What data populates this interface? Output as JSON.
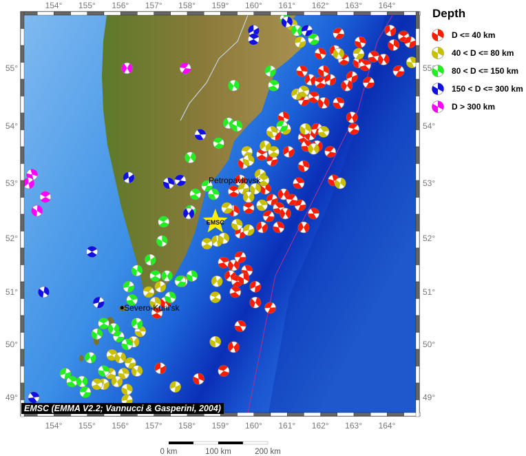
{
  "legend": {
    "title": "Depth",
    "items": [
      {
        "label": "D <= 40 km",
        "color": "#ff1a00"
      },
      {
        "label": "40 < D <= 80 km",
        "color": "#c8c000"
      },
      {
        "label": "80 < D <= 150 km",
        "color": "#22ee22"
      },
      {
        "label": "150 < D <= 300 km",
        "color": "#1010e0"
      },
      {
        "label": "D > 300 km",
        "color": "#ff00ff"
      }
    ]
  },
  "credit": "EMSC (EMMA V2.2; Vannucci & Gasperini, 2004)",
  "axes": {
    "lon_ticks": [
      "154°",
      "155°",
      "156°",
      "157°",
      "158°",
      "159°",
      "160°",
      "161°",
      "162°",
      "163°",
      "164°"
    ],
    "lat_ticks": [
      "55°",
      "54°",
      "53°",
      "52°",
      "51°",
      "50°",
      "49°"
    ]
  },
  "places": [
    {
      "name": "Petropavlovsk",
      "lon": 158.65,
      "lat": 53.05
    },
    {
      "name": "Severo-Kuril'sk",
      "lon": 156.05,
      "lat": 50.7
    }
  ],
  "marker": {
    "label": "EMSC",
    "lon": 158.85,
    "lat": 52.3,
    "color": "#ffee00"
  },
  "scale_bar": {
    "labels": [
      "0 km",
      "100 km",
      "200 km"
    ]
  },
  "events": {
    "0": [
      [
        162.55,
        55.6
      ],
      [
        163.2,
        55.45
      ],
      [
        164.1,
        55.65
      ],
      [
        164.5,
        55.55
      ],
      [
        164.2,
        55.4
      ],
      [
        164.7,
        55.45
      ],
      [
        163.6,
        55.2
      ],
      [
        163.9,
        55.15
      ],
      [
        164.35,
        54.95
      ],
      [
        162.0,
        55.25
      ],
      [
        162.45,
        55.3
      ],
      [
        162.7,
        55.15
      ],
      [
        163.15,
        55.1
      ],
      [
        162.95,
        54.85
      ],
      [
        163.35,
        55.05
      ],
      [
        162.8,
        54.7
      ],
      [
        163.45,
        54.75
      ],
      [
        161.45,
        54.95
      ],
      [
        161.7,
        54.8
      ],
      [
        162.0,
        54.75
      ],
      [
        162.1,
        54.95
      ],
      [
        162.3,
        54.8
      ],
      [
        161.8,
        54.5
      ],
      [
        162.1,
        54.4
      ],
      [
        161.5,
        54.45
      ],
      [
        162.55,
        54.4
      ],
      [
        162.95,
        54.15
      ],
      [
        163.0,
        53.95
      ],
      [
        160.9,
        54.15
      ],
      [
        160.65,
        53.85
      ],
      [
        161.5,
        53.8
      ],
      [
        161.7,
        53.85
      ],
      [
        161.9,
        53.95
      ],
      [
        161.6,
        53.65
      ],
      [
        161.9,
        53.65
      ],
      [
        162.3,
        53.55
      ],
      [
        161.5,
        53.3
      ],
      [
        161.05,
        53.55
      ],
      [
        160.25,
        53.5
      ],
      [
        159.7,
        53.35
      ],
      [
        160.55,
        53.4
      ],
      [
        161.35,
        53.0
      ],
      [
        160.9,
        52.8
      ],
      [
        161.15,
        52.7
      ],
      [
        162.4,
        53.05
      ],
      [
        159.6,
        53.05
      ],
      [
        159.4,
        52.85
      ],
      [
        160.35,
        52.9
      ],
      [
        160.55,
        52.7
      ],
      [
        160.75,
        52.55
      ],
      [
        160.95,
        52.45
      ],
      [
        160.45,
        52.4
      ],
      [
        160.75,
        52.2
      ],
      [
        160.25,
        52.2
      ],
      [
        159.85,
        52.55
      ],
      [
        159.4,
        52.5
      ],
      [
        159.6,
        52.1
      ],
      [
        159.1,
        51.55
      ],
      [
        159.4,
        51.5
      ],
      [
        159.6,
        51.65
      ],
      [
        159.8,
        51.4
      ],
      [
        159.3,
        51.3
      ],
      [
        159.5,
        51.2
      ],
      [
        159.7,
        51.25
      ],
      [
        160.05,
        51.1
      ],
      [
        159.45,
        51.0
      ],
      [
        160.05,
        50.8
      ],
      [
        160.5,
        50.7
      ],
      [
        159.6,
        50.35
      ],
      [
        159.4,
        49.95
      ],
      [
        159.1,
        49.5
      ],
      [
        158.35,
        49.35
      ],
      [
        157.2,
        49.55
      ],
      [
        157.1,
        50.6
      ],
      [
        157.35,
        50.8
      ],
      [
        161.4,
        52.6
      ],
      [
        161.8,
        52.45
      ],
      [
        161.5,
        52.2
      ]
    ],
    "1": [
      [
        159.8,
        53.55
      ],
      [
        159.85,
        53.4
      ],
      [
        160.2,
        53.15
      ],
      [
        160.3,
        53.05
      ],
      [
        160.05,
        52.9
      ],
      [
        159.7,
        52.9
      ],
      [
        160.25,
        52.6
      ],
      [
        159.85,
        52.75
      ],
      [
        159.2,
        52.55
      ],
      [
        159.5,
        52.25
      ],
      [
        158.9,
        51.95
      ],
      [
        158.6,
        51.9
      ],
      [
        159.1,
        52.0
      ],
      [
        159.85,
        52.15
      ],
      [
        162.1,
        53.9
      ],
      [
        161.8,
        53.6
      ],
      [
        160.95,
        53.95
      ],
      [
        160.55,
        53.9
      ],
      [
        160.35,
        53.65
      ],
      [
        160.6,
        53.55
      ],
      [
        161.55,
        53.95
      ],
      [
        161.3,
        54.55
      ],
      [
        161.5,
        54.6
      ],
      [
        162.55,
        55.25
      ],
      [
        163.15,
        55.25
      ],
      [
        164.75,
        55.1
      ],
      [
        158.9,
        51.2
      ],
      [
        158.85,
        50.9
      ],
      [
        158.85,
        50.05
      ],
      [
        157.65,
        49.2
      ],
      [
        155.75,
        49.8
      ],
      [
        156.0,
        49.75
      ],
      [
        156.3,
        49.65
      ],
      [
        156.1,
        49.45
      ],
      [
        155.9,
        49.3
      ],
      [
        155.7,
        49.45
      ],
      [
        156.2,
        49.15
      ],
      [
        155.5,
        49.25
      ],
      [
        155.3,
        49.25
      ],
      [
        156.5,
        49.5
      ],
      [
        156.2,
        48.95
      ],
      [
        156.6,
        50.25
      ],
      [
        156.4,
        50.05
      ],
      [
        156.85,
        51.0
      ],
      [
        157.05,
        50.8
      ],
      [
        157.2,
        51.1
      ],
      [
        157.85,
        51.2
      ],
      [
        162.6,
        53.0
      ],
      [
        161.4,
        55.45
      ],
      [
        161.15,
        55.75
      ]
    ],
    "2": [
      [
        157.4,
        51.3
      ],
      [
        157.8,
        51.2
      ],
      [
        157.5,
        50.9
      ],
      [
        156.9,
        51.6
      ],
      [
        157.05,
        51.3
      ],
      [
        156.5,
        51.4
      ],
      [
        156.25,
        51.1
      ],
      [
        156.35,
        50.85
      ],
      [
        155.8,
        50.3
      ],
      [
        155.95,
        50.15
      ],
      [
        156.2,
        50.0
      ],
      [
        156.5,
        50.4
      ],
      [
        155.5,
        50.4
      ],
      [
        155.3,
        50.2
      ],
      [
        154.35,
        49.45
      ],
      [
        154.55,
        49.3
      ],
      [
        154.85,
        49.3
      ],
      [
        154.95,
        49.1
      ],
      [
        155.5,
        49.5
      ],
      [
        155.1,
        49.75
      ],
      [
        157.3,
        52.3
      ],
      [
        157.25,
        51.95
      ],
      [
        158.1,
        52.5
      ],
      [
        158.25,
        52.8
      ],
      [
        158.1,
        53.45
      ],
      [
        158.6,
        52.95
      ],
      [
        158.8,
        52.8
      ],
      [
        159.25,
        54.05
      ],
      [
        158.95,
        53.7
      ],
      [
        159.5,
        54.0
      ],
      [
        160.5,
        54.95
      ],
      [
        160.6,
        54.7
      ],
      [
        159.4,
        54.7
      ],
      [
        160.85,
        54.0
      ],
      [
        160.95,
        55.85
      ],
      [
        161.3,
        55.65
      ],
      [
        161.8,
        55.5
      ],
      [
        158.15,
        51.3
      ]
    ],
    "3": [
      [
        160.0,
        55.65
      ],
      [
        160.0,
        55.5
      ],
      [
        161.0,
        55.8
      ],
      [
        161.6,
        55.65
      ],
      [
        158.4,
        53.85
      ],
      [
        158.05,
        52.45
      ],
      [
        157.8,
        53.05
      ],
      [
        157.45,
        53.0
      ],
      [
        156.25,
        53.1
      ],
      [
        155.15,
        51.75
      ],
      [
        153.7,
        51.0
      ],
      [
        155.35,
        50.8
      ],
      [
        153.4,
        49.0
      ]
    ],
    "4": [
      [
        156.2,
        55.0
      ],
      [
        157.95,
        55.0
      ],
      [
        153.35,
        53.15
      ],
      [
        153.25,
        53.0
      ],
      [
        153.75,
        52.75
      ],
      [
        153.5,
        52.5
      ]
    ]
  }
}
